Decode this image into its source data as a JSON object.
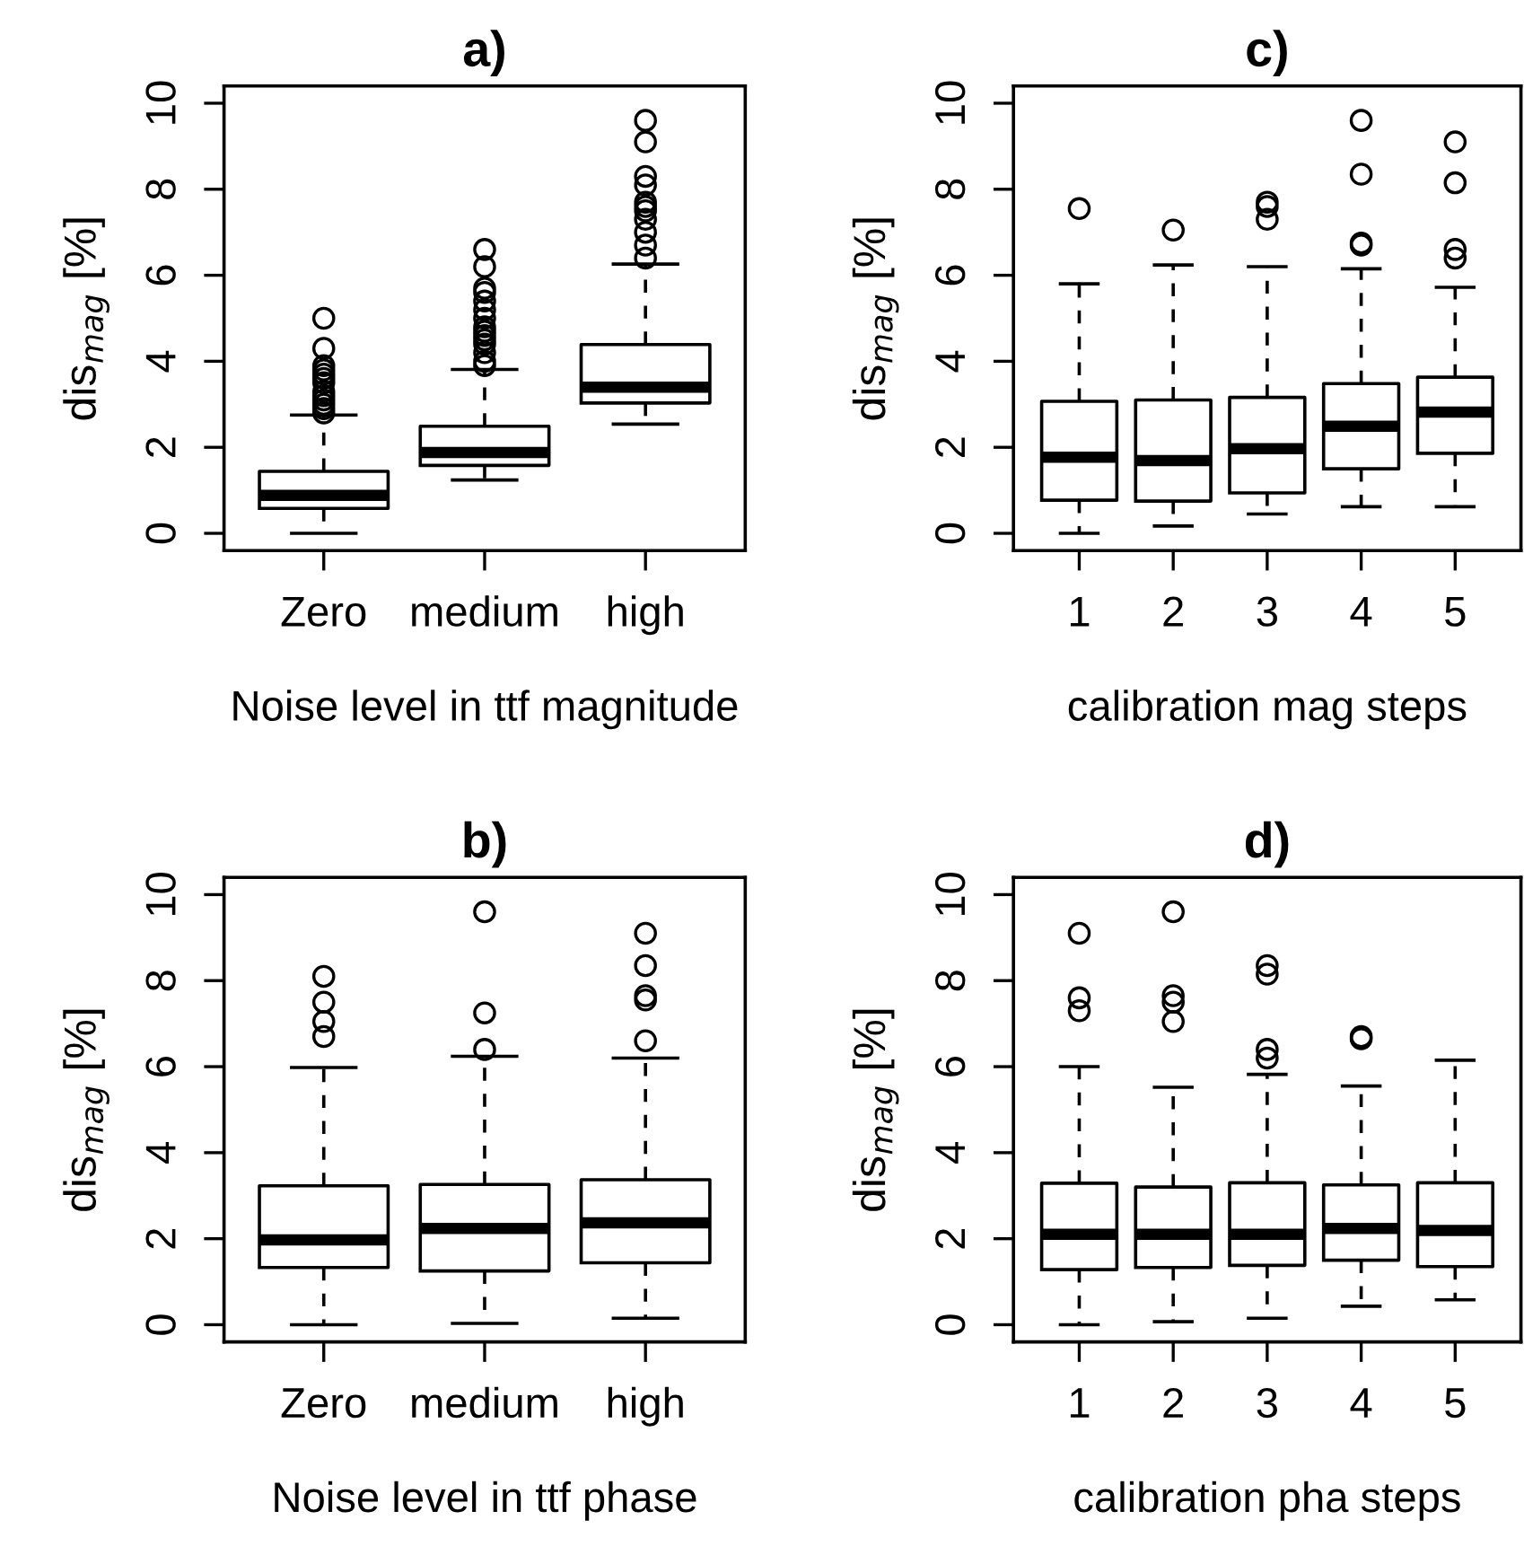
{
  "chart_data": [
    {
      "type": "box",
      "title": "a)",
      "xlabel": "Noise level in ttf magnitude",
      "ylabel": "dis$_{mag}$ [%]",
      "categories": [
        "Zero",
        "medium",
        "high"
      ],
      "ylim": [
        -0.4,
        10.4
      ],
      "yticks": [
        0,
        2,
        4,
        6,
        8,
        10
      ],
      "grid": false,
      "legend": false,
      "boxes": [
        {
          "low": 0,
          "q1": 0.58,
          "median": 0.88,
          "q3": 1.44,
          "high": 2.75,
          "outliers": [
            2.8,
            2.9,
            3.0,
            3.1,
            3.2,
            3.3,
            3.5,
            3.6,
            3.7,
            3.8,
            3.9,
            4.3,
            5.0
          ]
        },
        {
          "low": 1.24,
          "q1": 1.58,
          "median": 1.88,
          "q3": 2.49,
          "high": 3.81,
          "outliers": [
            3.9,
            4.0,
            4.2,
            4.4,
            4.5,
            4.6,
            4.7,
            4.8,
            5.0,
            5.2,
            5.4,
            5.6,
            5.7,
            6.2,
            6.6
          ]
        },
        {
          "low": 2.54,
          "q1": 3.03,
          "median": 3.4,
          "q3": 4.39,
          "high": 6.26,
          "outliers": [
            6.4,
            6.7,
            7.0,
            7.3,
            7.5,
            7.6,
            7.7,
            8.1,
            8.3,
            9.1,
            9.6
          ]
        }
      ]
    },
    {
      "type": "box",
      "title": "c)",
      "xlabel": "calibration mag steps",
      "ylabel": "dis$_{mag}$ [%]",
      "categories": [
        "1",
        "2",
        "3",
        "4",
        "5"
      ],
      "ylim": [
        -0.4,
        10.4
      ],
      "yticks": [
        0,
        2,
        4,
        6,
        8,
        10
      ],
      "grid": false,
      "legend": false,
      "boxes": [
        {
          "low": 0,
          "q1": 0.77,
          "median": 1.77,
          "q3": 3.07,
          "high": 5.8,
          "outliers": [
            7.55
          ]
        },
        {
          "low": 0.17,
          "q1": 0.75,
          "median": 1.69,
          "q3": 3.1,
          "high": 6.24,
          "outliers": [
            7.05
          ]
        },
        {
          "low": 0.45,
          "q1": 0.94,
          "median": 1.97,
          "q3": 3.16,
          "high": 6.2,
          "outliers": [
            7.3,
            7.6,
            7.7
          ]
        },
        {
          "low": 0.62,
          "q1": 1.5,
          "median": 2.49,
          "q3": 3.48,
          "high": 6.15,
          "outliers": [
            6.7,
            6.75,
            8.35,
            9.6
          ]
        },
        {
          "low": 0.62,
          "q1": 1.86,
          "median": 2.82,
          "q3": 3.63,
          "high": 5.72,
          "outliers": [
            6.4,
            6.6,
            8.15,
            9.1
          ]
        }
      ]
    },
    {
      "type": "box",
      "title": "b)",
      "xlabel": "Noise level in ttf phase",
      "ylabel": "dis$_{mag}$ [%]",
      "categories": [
        "Zero",
        "medium",
        "high"
      ],
      "ylim": [
        -0.4,
        10.4
      ],
      "yticks": [
        0,
        2,
        4,
        6,
        8,
        10
      ],
      "grid": false,
      "legend": false,
      "boxes": [
        {
          "low": 0,
          "q1": 1.33,
          "median": 1.97,
          "q3": 3.23,
          "high": 5.98,
          "outliers": [
            6.7,
            7.05,
            7.5,
            8.1
          ]
        },
        {
          "low": 0.03,
          "q1": 1.25,
          "median": 2.24,
          "q3": 3.26,
          "high": 6.24,
          "outliers": [
            6.4,
            7.25,
            9.6
          ]
        },
        {
          "low": 0.15,
          "q1": 1.44,
          "median": 2.37,
          "q3": 3.37,
          "high": 6.2,
          "outliers": [
            6.6,
            7.55,
            7.65,
            8.35,
            9.1
          ]
        }
      ]
    },
    {
      "type": "box",
      "title": "d)",
      "xlabel": "calibration pha steps",
      "ylabel": "dis$_{mag}$ [%]",
      "categories": [
        "1",
        "2",
        "3",
        "4",
        "5"
      ],
      "ylim": [
        -0.4,
        10.4
      ],
      "yticks": [
        0,
        2,
        4,
        6,
        8,
        10
      ],
      "grid": false,
      "legend": false,
      "boxes": [
        {
          "low": 0,
          "q1": 1.28,
          "median": 2.1,
          "q3": 3.29,
          "high": 6.0,
          "outliers": [
            7.3,
            7.6,
            9.1
          ]
        },
        {
          "low": 0.07,
          "q1": 1.33,
          "median": 2.1,
          "q3": 3.2,
          "high": 5.52,
          "outliers": [
            7.05,
            7.5,
            7.65,
            9.6
          ]
        },
        {
          "low": 0.15,
          "q1": 1.38,
          "median": 2.1,
          "q3": 3.3,
          "high": 5.82,
          "outliers": [
            6.2,
            6.4,
            8.15,
            8.35
          ]
        },
        {
          "low": 0.43,
          "q1": 1.5,
          "median": 2.24,
          "q3": 3.25,
          "high": 5.55,
          "outliers": [
            6.65,
            6.7
          ]
        },
        {
          "low": 0.58,
          "q1": 1.35,
          "median": 2.19,
          "q3": 3.3,
          "high": 6.15
        }
      ]
    }
  ]
}
